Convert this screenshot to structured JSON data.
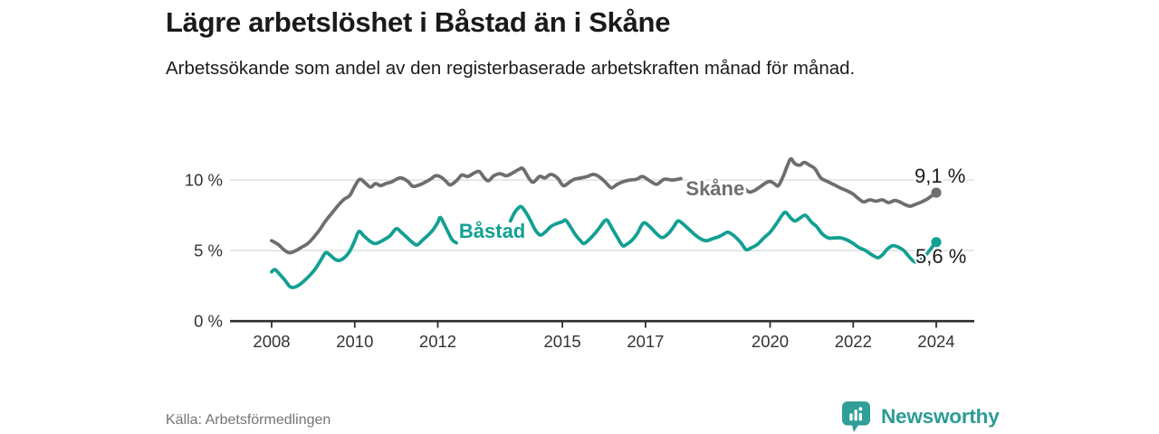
{
  "header": {
    "title": "Lägre arbetslöshet i Båstad än i Skåne",
    "subtitle": "Arbetssökande som andel av den registerbaserade arbetskraften månad för månad."
  },
  "footer": {
    "source": "Källa: Arbetsförmedlingen",
    "brand": "Newsworthy"
  },
  "colors": {
    "brand_teal": "#2b9c94",
    "series_teal": "#12a092",
    "series_gray": "#6d6e71",
    "text_dark": "#1a1a1a",
    "text_muted": "#757575"
  },
  "chart_data": {
    "type": "line",
    "title": "Lägre arbetslöshet i Båstad än i Skåne",
    "subtitle": "Arbetssökande som andel av den registerbaserade arbetskraften månad för månad.",
    "unit": "%",
    "xlim": [
      2007.9,
      2025.0
    ],
    "ylim": [
      0,
      12.5
    ],
    "grid": "horizontal",
    "legend_position": "inline-labels",
    "colors": {
      "grid": "#d8d8d8",
      "axis": "#2e2e2e",
      "tick_text": "#333333",
      "value_text": "#1a1a1a"
    },
    "x_axis": {
      "ticks": [
        {
          "value": 2008,
          "label": "2008"
        },
        {
          "value": 2010,
          "label": "2010"
        },
        {
          "value": 2012,
          "label": "2012"
        },
        {
          "value": 2015,
          "label": "2015"
        },
        {
          "value": 2017,
          "label": "2017"
        },
        {
          "value": 2020,
          "label": "2020"
        },
        {
          "value": 2022,
          "label": "2022"
        },
        {
          "value": 2024,
          "label": "2024"
        }
      ]
    },
    "y_axis": {
      "ticks": [
        {
          "value": 0,
          "label": "0 %"
        },
        {
          "value": 5,
          "label": "5 %"
        },
        {
          "value": 10,
          "label": "10 %"
        }
      ]
    },
    "series": [
      {
        "id": "skane",
        "name": "Skåne",
        "color": "#6d6e71",
        "end_value": 9.1,
        "value_label": "9,1 %",
        "value_label_position": "above",
        "label": {
          "x": 2017.97,
          "y": 8.92
        },
        "segments": [
          [
            [
              2008.0,
              5.7
            ],
            [
              2008.15,
              5.45
            ],
            [
              2008.3,
              5.05
            ],
            [
              2008.42,
              4.85
            ],
            [
              2008.55,
              4.95
            ],
            [
              2008.7,
              5.2
            ],
            [
              2008.87,
              5.5
            ],
            [
              2009.0,
              5.9
            ],
            [
              2009.15,
              6.45
            ],
            [
              2009.3,
              7.1
            ],
            [
              2009.45,
              7.65
            ],
            [
              2009.6,
              8.2
            ],
            [
              2009.75,
              8.65
            ],
            [
              2009.88,
              8.9
            ],
            [
              2010.0,
              9.55
            ],
            [
              2010.12,
              10.05
            ],
            [
              2010.25,
              9.8
            ],
            [
              2010.38,
              9.5
            ],
            [
              2010.5,
              9.75
            ],
            [
              2010.62,
              9.6
            ],
            [
              2010.75,
              9.75
            ],
            [
              2010.88,
              9.85
            ],
            [
              2011.0,
              10.05
            ],
            [
              2011.12,
              10.15
            ],
            [
              2011.28,
              9.9
            ],
            [
              2011.4,
              9.55
            ],
            [
              2011.55,
              9.65
            ],
            [
              2011.7,
              9.85
            ],
            [
              2011.82,
              10.05
            ],
            [
              2011.95,
              10.3
            ],
            [
              2012.08,
              10.2
            ],
            [
              2012.2,
              9.9
            ],
            [
              2012.3,
              9.65
            ],
            [
              2012.45,
              9.95
            ],
            [
              2012.58,
              10.35
            ],
            [
              2012.72,
              10.25
            ],
            [
              2012.88,
              10.5
            ],
            [
              2013.0,
              10.6
            ],
            [
              2013.12,
              10.15
            ],
            [
              2013.22,
              9.95
            ],
            [
              2013.35,
              10.3
            ],
            [
              2013.5,
              10.45
            ],
            [
              2013.65,
              10.3
            ],
            [
              2013.8,
              10.5
            ],
            [
              2013.95,
              10.75
            ],
            [
              2014.05,
              10.8
            ],
            [
              2014.2,
              10.1
            ],
            [
              2014.3,
              9.85
            ],
            [
              2014.45,
              10.25
            ],
            [
              2014.58,
              10.15
            ],
            [
              2014.72,
              10.4
            ],
            [
              2014.88,
              10.15
            ],
            [
              2015.02,
              9.6
            ],
            [
              2015.15,
              9.8
            ],
            [
              2015.28,
              10.05
            ],
            [
              2015.45,
              10.15
            ],
            [
              2015.6,
              10.25
            ],
            [
              2015.75,
              10.4
            ],
            [
              2015.9,
              10.2
            ],
            [
              2016.05,
              9.8
            ],
            [
              2016.18,
              9.45
            ],
            [
              2016.32,
              9.7
            ],
            [
              2016.48,
              9.9
            ],
            [
              2016.62,
              10.0
            ],
            [
              2016.78,
              10.05
            ],
            [
              2016.93,
              10.25
            ],
            [
              2017.1,
              9.95
            ],
            [
              2017.27,
              9.7
            ],
            [
              2017.45,
              10.05
            ],
            [
              2017.65,
              10.0
            ],
            [
              2017.85,
              10.1
            ]
          ],
          [
            [
              2019.4,
              9.35
            ],
            [
              2019.5,
              9.15
            ],
            [
              2019.62,
              9.25
            ],
            [
              2019.75,
              9.5
            ],
            [
              2019.9,
              9.8
            ],
            [
              2020.0,
              9.9
            ],
            [
              2020.1,
              9.75
            ],
            [
              2020.2,
              9.6
            ],
            [
              2020.32,
              10.3
            ],
            [
              2020.42,
              11.05
            ],
            [
              2020.5,
              11.5
            ],
            [
              2020.6,
              11.15
            ],
            [
              2020.72,
              11.05
            ],
            [
              2020.82,
              11.25
            ],
            [
              2020.95,
              11.05
            ],
            [
              2021.08,
              10.8
            ],
            [
              2021.22,
              10.15
            ],
            [
              2021.38,
              9.9
            ],
            [
              2021.55,
              9.65
            ],
            [
              2021.72,
              9.4
            ],
            [
              2021.88,
              9.2
            ],
            [
              2022.0,
              9.0
            ],
            [
              2022.12,
              8.7
            ],
            [
              2022.25,
              8.45
            ],
            [
              2022.4,
              8.6
            ],
            [
              2022.55,
              8.5
            ],
            [
              2022.7,
              8.6
            ],
            [
              2022.85,
              8.4
            ],
            [
              2023.0,
              8.55
            ],
            [
              2023.12,
              8.45
            ],
            [
              2023.25,
              8.25
            ],
            [
              2023.38,
              8.15
            ],
            [
              2023.52,
              8.3
            ],
            [
              2023.65,
              8.45
            ],
            [
              2023.78,
              8.65
            ],
            [
              2023.9,
              8.9
            ],
            [
              2024.0,
              9.1
            ]
          ]
        ]
      },
      {
        "id": "bastad",
        "name": "Båstad",
        "color": "#12a092",
        "end_value": 5.6,
        "value_label": "5,6 %",
        "value_label_position": "below",
        "label": {
          "x": 2012.51,
          "y": 5.91
        },
        "segments": [
          [
            [
              2008.0,
              3.5
            ],
            [
              2008.08,
              3.65
            ],
            [
              2008.2,
              3.3
            ],
            [
              2008.32,
              2.9
            ],
            [
              2008.44,
              2.45
            ],
            [
              2008.55,
              2.4
            ],
            [
              2008.68,
              2.6
            ],
            [
              2008.8,
              2.9
            ],
            [
              2008.92,
              3.25
            ],
            [
              2009.05,
              3.7
            ],
            [
              2009.18,
              4.3
            ],
            [
              2009.3,
              4.85
            ],
            [
              2009.4,
              4.7
            ],
            [
              2009.52,
              4.4
            ],
            [
              2009.62,
              4.3
            ],
            [
              2009.75,
              4.5
            ],
            [
              2009.88,
              4.95
            ],
            [
              2010.0,
              5.7
            ],
            [
              2010.1,
              6.35
            ],
            [
              2010.22,
              6.05
            ],
            [
              2010.35,
              5.7
            ],
            [
              2010.48,
              5.5
            ],
            [
              2010.6,
              5.6
            ],
            [
              2010.72,
              5.8
            ],
            [
              2010.85,
              6.05
            ],
            [
              2011.0,
              6.55
            ],
            [
              2011.12,
              6.3
            ],
            [
              2011.25,
              5.95
            ],
            [
              2011.38,
              5.6
            ],
            [
              2011.5,
              5.4
            ],
            [
              2011.62,
              5.7
            ],
            [
              2011.75,
              6.05
            ],
            [
              2011.88,
              6.45
            ],
            [
              2012.0,
              7.0
            ],
            [
              2012.06,
              7.35
            ],
            [
              2012.15,
              6.9
            ],
            [
              2012.25,
              6.3
            ],
            [
              2012.35,
              5.75
            ],
            [
              2012.45,
              5.55
            ]
          ],
          [
            [
              2013.75,
              7.1
            ],
            [
              2013.85,
              7.7
            ],
            [
              2013.95,
              8.05
            ],
            [
              2014.02,
              8.1
            ],
            [
              2014.12,
              7.7
            ],
            [
              2014.22,
              7.2
            ],
            [
              2014.35,
              6.45
            ],
            [
              2014.47,
              6.1
            ],
            [
              2014.6,
              6.35
            ],
            [
              2014.72,
              6.7
            ],
            [
              2014.85,
              6.9
            ],
            [
              2015.0,
              7.05
            ],
            [
              2015.08,
              7.15
            ],
            [
              2015.2,
              6.65
            ],
            [
              2015.32,
              6.1
            ],
            [
              2015.45,
              5.65
            ],
            [
              2015.52,
              5.5
            ],
            [
              2015.65,
              5.8
            ],
            [
              2015.78,
              6.2
            ],
            [
              2015.9,
              6.65
            ],
            [
              2016.0,
              7.05
            ],
            [
              2016.08,
              7.15
            ],
            [
              2016.2,
              6.55
            ],
            [
              2016.32,
              5.95
            ],
            [
              2016.45,
              5.35
            ],
            [
              2016.55,
              5.45
            ],
            [
              2016.68,
              5.75
            ],
            [
              2016.8,
              6.2
            ],
            [
              2016.95,
              6.95
            ],
            [
              2017.1,
              6.7
            ],
            [
              2017.25,
              6.25
            ],
            [
              2017.4,
              5.92
            ],
            [
              2017.55,
              6.2
            ],
            [
              2017.68,
              6.7
            ],
            [
              2017.78,
              7.1
            ],
            [
              2017.9,
              6.9
            ],
            [
              2018.05,
              6.5
            ],
            [
              2018.2,
              6.1
            ],
            [
              2018.35,
              5.8
            ],
            [
              2018.47,
              5.7
            ],
            [
              2018.62,
              5.85
            ],
            [
              2018.78,
              6.0
            ],
            [
              2018.9,
              6.2
            ],
            [
              2019.0,
              6.3
            ],
            [
              2019.15,
              6.0
            ],
            [
              2019.3,
              5.55
            ],
            [
              2019.42,
              5.07
            ],
            [
              2019.55,
              5.2
            ],
            [
              2019.7,
              5.45
            ],
            [
              2019.85,
              5.9
            ],
            [
              2020.0,
              6.3
            ],
            [
              2020.15,
              6.9
            ],
            [
              2020.3,
              7.55
            ],
            [
              2020.38,
              7.7
            ],
            [
              2020.5,
              7.3
            ],
            [
              2020.6,
              7.1
            ],
            [
              2020.72,
              7.3
            ],
            [
              2020.85,
              7.5
            ],
            [
              2021.0,
              7.0
            ],
            [
              2021.12,
              6.7
            ],
            [
              2021.25,
              6.2
            ],
            [
              2021.4,
              5.9
            ],
            [
              2021.55,
              5.9
            ],
            [
              2021.7,
              5.9
            ],
            [
              2021.85,
              5.75
            ],
            [
              2022.0,
              5.5
            ],
            [
              2022.15,
              5.2
            ],
            [
              2022.3,
              5.0
            ],
            [
              2022.45,
              4.7
            ],
            [
              2022.6,
              4.5
            ],
            [
              2022.72,
              4.75
            ],
            [
              2022.82,
              5.1
            ],
            [
              2022.95,
              5.35
            ],
            [
              2023.08,
              5.25
            ],
            [
              2023.22,
              5.0
            ],
            [
              2023.35,
              4.55
            ],
            [
              2023.48,
              4.2
            ],
            [
              2023.6,
              4.3
            ],
            [
              2023.72,
              4.6
            ],
            [
              2023.85,
              5.05
            ],
            [
              2023.95,
              5.45
            ],
            [
              2024.0,
              5.6
            ]
          ]
        ]
      }
    ]
  }
}
